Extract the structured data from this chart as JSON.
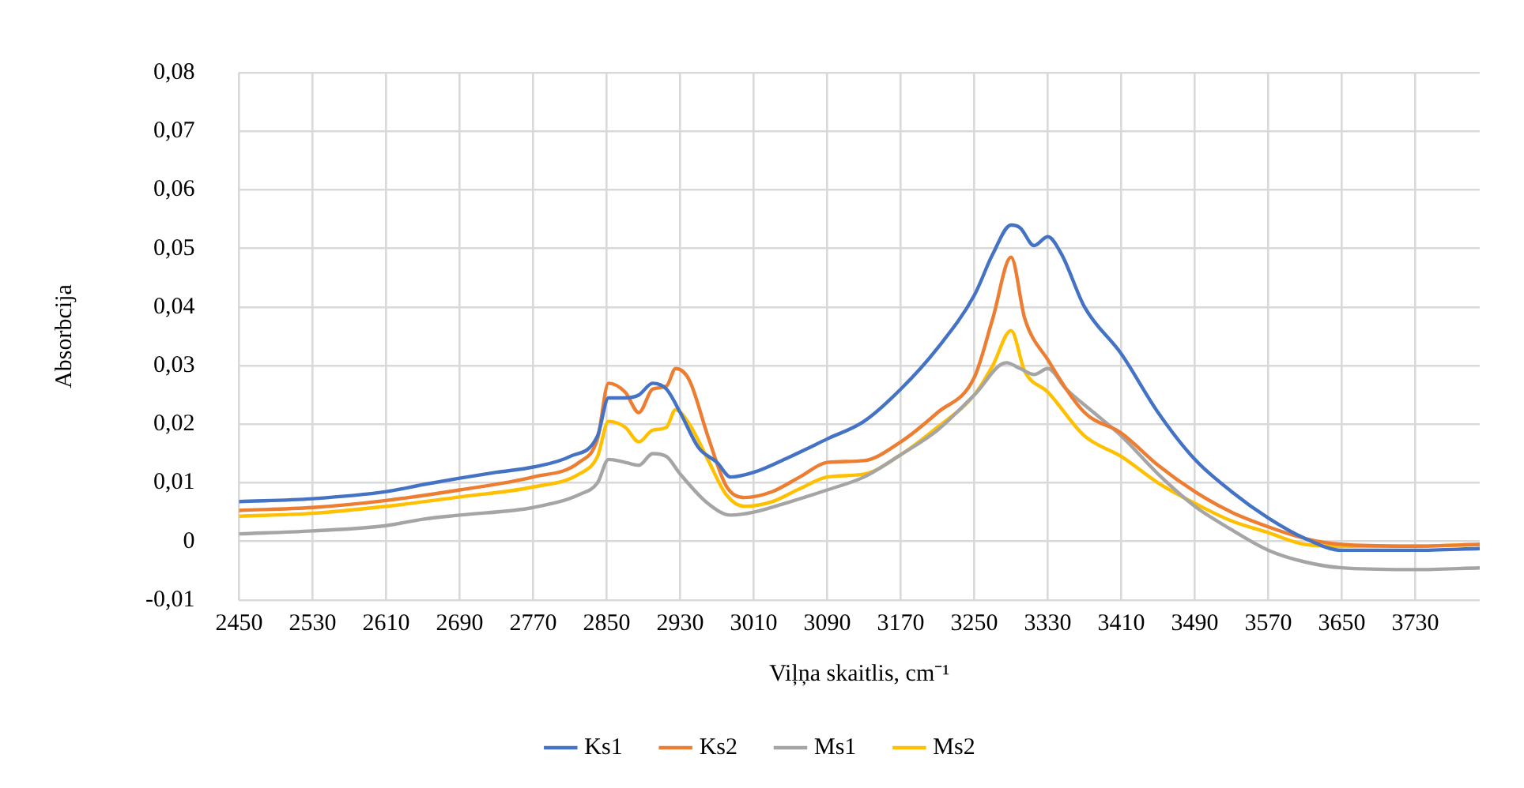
{
  "chart_data": {
    "type": "line",
    "xlabel": "Viļņa skaitlis, cm⁻¹",
    "ylabel": "Absorbcija",
    "xlim": [
      2450,
      3800
    ],
    "xticks": [
      2450,
      2530,
      2610,
      2690,
      2770,
      2850,
      2930,
      3010,
      3090,
      3170,
      3250,
      3330,
      3410,
      3490,
      3570,
      3650,
      3730
    ],
    "ylim": [
      -0.01,
      0.08
    ],
    "yticks": [
      {
        "value": -0.01,
        "label": "-0,01"
      },
      0,
      {
        "value": 0.01,
        "label": "0,01"
      },
      {
        "value": 0.02,
        "label": "0,02"
      },
      {
        "value": 0.03,
        "label": "0,03"
      },
      {
        "value": 0.04,
        "label": "0,04"
      },
      {
        "value": 0.05,
        "label": "0,05"
      },
      {
        "value": 0.06,
        "label": "0,06"
      },
      {
        "value": 0.07,
        "label": "0,07"
      },
      {
        "value": 0.08,
        "label": "0,08"
      }
    ],
    "grid": true,
    "legend": "bottom",
    "marker": "none",
    "line_style": "solid",
    "series": [
      {
        "name": "Ks1",
        "color": "#4472c4",
        "x": [
          2450,
          2530,
          2610,
          2650,
          2690,
          2730,
          2770,
          2810,
          2840,
          2852,
          2870,
          2885,
          2900,
          2915,
          2930,
          2950,
          2970,
          2985,
          3010,
          3050,
          3090,
          3130,
          3170,
          3210,
          3250,
          3270,
          3290,
          3300,
          3315,
          3330,
          3345,
          3370,
          3410,
          3450,
          3490,
          3530,
          3570,
          3610,
          3650,
          3730,
          3800
        ],
        "values": [
          0.0068,
          0.0073,
          0.0085,
          0.0097,
          0.0108,
          0.0118,
          0.0127,
          0.0145,
          0.018,
          0.0245,
          0.0245,
          0.025,
          0.027,
          0.026,
          0.022,
          0.016,
          0.0135,
          0.011,
          0.0118,
          0.0145,
          0.0175,
          0.0205,
          0.026,
          0.033,
          0.042,
          0.049,
          0.054,
          0.0535,
          0.0505,
          0.052,
          0.049,
          0.04,
          0.032,
          0.022,
          0.014,
          0.0085,
          0.004,
          0.0005,
          -0.0015,
          -0.0015,
          -0.0012
        ]
      },
      {
        "name": "Ks2",
        "color": "#ed7d31",
        "x": [
          2450,
          2530,
          2610,
          2690,
          2770,
          2820,
          2840,
          2852,
          2870,
          2885,
          2900,
          2915,
          2925,
          2940,
          2960,
          2980,
          3000,
          3030,
          3060,
          3090,
          3130,
          3170,
          3210,
          3250,
          3270,
          3290,
          3305,
          3330,
          3370,
          3410,
          3450,
          3490,
          3530,
          3570,
          3610,
          3650,
          3730,
          3800
        ],
        "values": [
          0.0053,
          0.0058,
          0.007,
          0.0088,
          0.011,
          0.0135,
          0.0175,
          0.027,
          0.0255,
          0.022,
          0.026,
          0.0265,
          0.0295,
          0.0275,
          0.018,
          0.0095,
          0.0075,
          0.0085,
          0.011,
          0.0135,
          0.0138,
          0.017,
          0.022,
          0.028,
          0.038,
          0.0485,
          0.038,
          0.031,
          0.022,
          0.0185,
          0.013,
          0.0085,
          0.005,
          0.0025,
          0.0005,
          -0.0005,
          -0.0008,
          -0.0005
        ]
      },
      {
        "name": "Ms1",
        "color": "#a5a5a5",
        "x": [
          2450,
          2530,
          2610,
          2650,
          2690,
          2770,
          2820,
          2840,
          2852,
          2870,
          2885,
          2900,
          2915,
          2930,
          2960,
          2985,
          3010,
          3050,
          3090,
          3130,
          3170,
          3210,
          3250,
          3285,
          3300,
          3315,
          3330,
          3350,
          3380,
          3410,
          3450,
          3490,
          3530,
          3570,
          3610,
          3650,
          3730,
          3800
        ],
        "values": [
          0.0013,
          0.0018,
          0.0027,
          0.0038,
          0.0045,
          0.0058,
          0.008,
          0.01,
          0.014,
          0.0135,
          0.013,
          0.015,
          0.0145,
          0.0115,
          0.0065,
          0.0045,
          0.005,
          0.0068,
          0.0088,
          0.011,
          0.0148,
          0.019,
          0.025,
          0.0305,
          0.0295,
          0.0285,
          0.0295,
          0.026,
          0.022,
          0.018,
          0.0115,
          0.006,
          0.002,
          -0.0015,
          -0.0035,
          -0.0045,
          -0.0048,
          -0.0045
        ]
      },
      {
        "name": "Ms2",
        "color": "#ffc000",
        "x": [
          2450,
          2530,
          2610,
          2690,
          2770,
          2820,
          2840,
          2852,
          2870,
          2885,
          2900,
          2915,
          2925,
          2940,
          2960,
          2980,
          3000,
          3030,
          3060,
          3090,
          3130,
          3170,
          3210,
          3250,
          3270,
          3290,
          3305,
          3330,
          3370,
          3410,
          3450,
          3490,
          3530,
          3570,
          3610,
          3650,
          3730,
          3800
        ],
        "values": [
          0.0043,
          0.0048,
          0.006,
          0.0076,
          0.0093,
          0.0115,
          0.0145,
          0.0205,
          0.0195,
          0.017,
          0.019,
          0.0195,
          0.0225,
          0.02,
          0.014,
          0.008,
          0.006,
          0.0068,
          0.009,
          0.011,
          0.0115,
          0.0148,
          0.0195,
          0.025,
          0.03,
          0.036,
          0.029,
          0.0255,
          0.018,
          0.0145,
          0.01,
          0.0065,
          0.0035,
          0.0015,
          -0.0005,
          -0.0008,
          -0.0008,
          -0.0005
        ]
      }
    ]
  }
}
